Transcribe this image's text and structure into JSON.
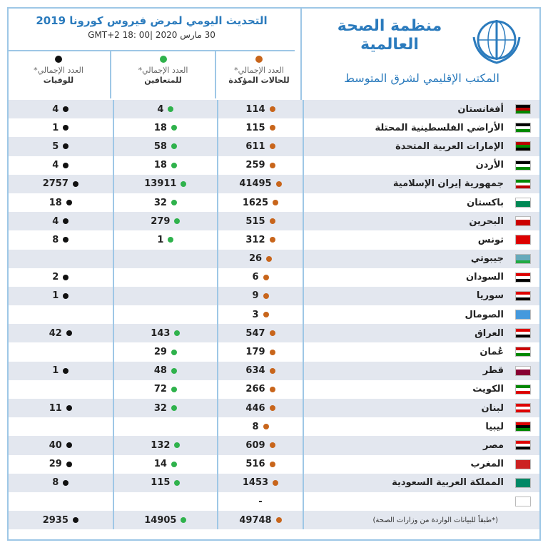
{
  "header": {
    "org_name": "منظمة الصحة العالمية",
    "office": "المكتب الإقليمي لشرق المتوسط",
    "title": "التحديث اليومي لمرض فيروس كورونا 2019",
    "date": "30 مارس 2020 |GMT+2 18: 00"
  },
  "table": {
    "columns": [
      {
        "line1": "العدد الإجمالي*",
        "line2": "للحالات المؤكدة"
      },
      {
        "line1": "العدد الإجمالي*",
        "line2": "للمتعافين"
      },
      {
        "line1": "العدد الإجمالي*",
        "line2": "للوفيات"
      }
    ],
    "rows": [
      {
        "country": "أفغانستان",
        "confirmed": 114,
        "recovered": 4,
        "deaths": 4
      },
      {
        "country": "الأراضي الفلسطينية المحتلة",
        "confirmed": 115,
        "recovered": 18,
        "deaths": 1
      },
      {
        "country": "الإمارات العربية المتحدة",
        "confirmed": 611,
        "recovered": 58,
        "deaths": 5
      },
      {
        "country": "الأردن",
        "confirmed": 259,
        "recovered": 18,
        "deaths": 4
      },
      {
        "country": "جمهورية إيران الإسلامية",
        "confirmed": 41495,
        "recovered": 13911,
        "deaths": 2757
      },
      {
        "country": "باكستان",
        "confirmed": 1625,
        "recovered": 32,
        "deaths": 18
      },
      {
        "country": "البحرين",
        "confirmed": 515,
        "recovered": 279,
        "deaths": 4
      },
      {
        "country": "تونس",
        "confirmed": 312,
        "recovered": 1,
        "deaths": 8
      },
      {
        "country": "جيبوتي",
        "confirmed": 26,
        "recovered": null,
        "deaths": null
      },
      {
        "country": "السودان",
        "confirmed": 6,
        "recovered": null,
        "deaths": 2
      },
      {
        "country": "سوريا",
        "confirmed": 9,
        "recovered": null,
        "deaths": 1
      },
      {
        "country": "الصومال",
        "confirmed": 3,
        "recovered": null,
        "deaths": null
      },
      {
        "country": "العراق",
        "confirmed": 547,
        "recovered": 143,
        "deaths": 42
      },
      {
        "country": "عُمان",
        "confirmed": 179,
        "recovered": 29,
        "deaths": null
      },
      {
        "country": "قطر",
        "confirmed": 634,
        "recovered": 48,
        "deaths": 1
      },
      {
        "country": "الكويت",
        "confirmed": 266,
        "recovered": 72,
        "deaths": null
      },
      {
        "country": "لبنان",
        "confirmed": 446,
        "recovered": 32,
        "deaths": 11
      },
      {
        "country": "ليبيا",
        "confirmed": 8,
        "recovered": null,
        "deaths": null
      },
      {
        "country": "مصر",
        "confirmed": 609,
        "recovered": 132,
        "deaths": 40
      },
      {
        "country": "المغرب",
        "confirmed": 516,
        "recovered": 14,
        "deaths": 29
      },
      {
        "country": "المملكة العربية السعودية",
        "confirmed": 1453,
        "recovered": 115,
        "deaths": 8
      },
      {
        "country": null,
        "confirmed": "-",
        "recovered": null,
        "deaths": null
      }
    ],
    "total": {
      "note": "(*طبقاً للبيانات الواردة من وزارات الصحة)",
      "confirmed": 49748,
      "recovered": 14905,
      "deaths": 2935
    }
  }
}
